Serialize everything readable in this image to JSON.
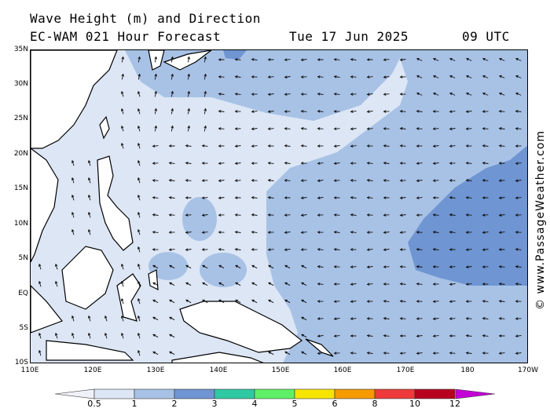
{
  "header": {
    "title_line1": "Wave Height (m) and Direction",
    "title_line2": "EC-WAM 021 Hour Forecast",
    "date": "Tue 17 Jun 2025",
    "time": "09 UTC"
  },
  "credit": "© www.PassageWeather.com",
  "map": {
    "lat_labels": [
      "35N",
      "30N",
      "25N",
      "20N",
      "15N",
      "10N",
      "5N",
      "EQ",
      "5S",
      "10S"
    ],
    "lon_labels": [
      "110E",
      "120E",
      "130E",
      "140E",
      "150E",
      "160E",
      "170E",
      "180",
      "170W"
    ],
    "lon_range": [
      "110E",
      "170W"
    ],
    "lat_range": [
      "10S",
      "35N"
    ],
    "dominant_wind_direction": "east-to-west (easterly trades), southerly over South China Sea"
  },
  "legend": {
    "labels": [
      "0.5",
      "1",
      "2",
      "3",
      "4",
      "5",
      "6",
      "8",
      "10",
      "12"
    ],
    "colors": [
      "#f0f0f8",
      "#dce6f5",
      "#a8c2e6",
      "#6f95d2",
      "#2fc9a4",
      "#5ff067",
      "#f7e500",
      "#f59a00",
      "#ee3a3a",
      "#b8001f",
      "#c400d6"
    ]
  },
  "palette": {
    "sea_light": "#dce6f5",
    "sea_mid": "#a8c2e6",
    "sea_dark": "#6f95d2",
    "land": "#ffffff"
  }
}
